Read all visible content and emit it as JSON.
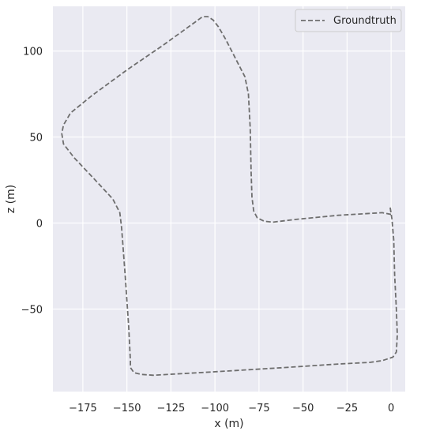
{
  "chart_data": {
    "type": "line",
    "title": "",
    "xlabel": "x (m)",
    "ylabel": "z (m)",
    "xlim": [
      -192,
      8
    ],
    "ylim": [
      -98,
      126
    ],
    "xticks": [
      -175,
      -150,
      -125,
      -100,
      -75,
      -50,
      -25,
      0
    ],
    "xtick_labels": [
      "−175",
      "−150",
      "−125",
      "−100",
      "−75",
      "−50",
      "−25",
      "0"
    ],
    "yticks": [
      -50,
      0,
      50,
      100
    ],
    "ytick_labels": [
      "−50",
      "0",
      "50",
      "100"
    ],
    "grid": true,
    "legend_position": "upper right",
    "background_color": "#eaeaf2",
    "series": [
      {
        "name": "Groundtruth",
        "style": "dashed",
        "color": "#6e6e6e",
        "points": [
          [
            -0.5,
            9
          ],
          [
            0,
            5
          ],
          [
            -5,
            6
          ],
          [
            -30,
            4.5
          ],
          [
            -55,
            2
          ],
          [
            -67,
            0.5
          ],
          [
            -72,
            1
          ],
          [
            -76,
            3
          ],
          [
            -78,
            7
          ],
          [
            -79,
            15
          ],
          [
            -79.5,
            30
          ],
          [
            -80,
            55
          ],
          [
            -81,
            75
          ],
          [
            -83,
            85
          ],
          [
            -86,
            91
          ],
          [
            -89,
            97
          ],
          [
            -94,
            107
          ],
          [
            -98,
            114
          ],
          [
            -101,
            118
          ],
          [
            -104,
            120
          ],
          [
            -107,
            120
          ],
          [
            -111,
            117
          ],
          [
            -130,
            103
          ],
          [
            -150,
            89
          ],
          [
            -170,
            74
          ],
          [
            -182,
            64
          ],
          [
            -186,
            57
          ],
          [
            -187,
            52
          ],
          [
            -186,
            46
          ],
          [
            -180,
            38
          ],
          [
            -168,
            25
          ],
          [
            -158,
            14
          ],
          [
            -154,
            6
          ],
          [
            -153,
            -3
          ],
          [
            -151,
            -30
          ],
          [
            -149,
            -60
          ],
          [
            -148,
            -80
          ],
          [
            -148,
            -84
          ],
          [
            -146,
            -87
          ],
          [
            -142,
            -88
          ],
          [
            -135,
            -88.5
          ],
          [
            -100,
            -86.5
          ],
          [
            -60,
            -84
          ],
          [
            -30,
            -82
          ],
          [
            -12,
            -81
          ],
          [
            -5,
            -80
          ],
          [
            1,
            -78
          ],
          [
            3,
            -75
          ],
          [
            3.5,
            -65
          ],
          [
            3,
            -50
          ],
          [
            2,
            -30
          ],
          [
            1.5,
            -10
          ],
          [
            0.5,
            2
          ],
          [
            -0.5,
            9
          ]
        ]
      }
    ]
  }
}
